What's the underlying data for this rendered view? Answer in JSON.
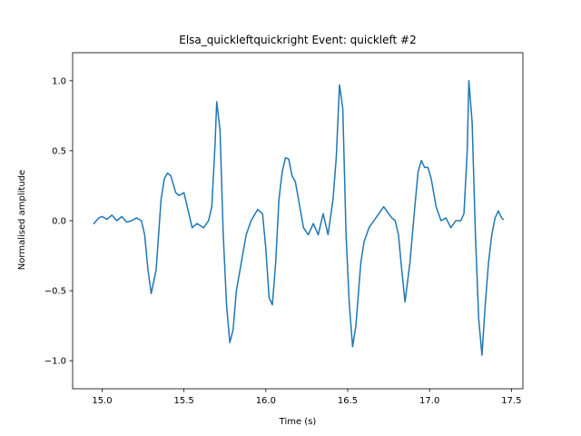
{
  "chart_data": {
    "type": "line",
    "title": "Elsa_quickleftquickright Event: quickleft #2",
    "xlabel": "Time (s)",
    "ylabel": "Normalised amplitude",
    "xlim": [
      14.82,
      17.57
    ],
    "ylim": [
      -1.2,
      1.2
    ],
    "xticks": [
      15.0,
      15.5,
      16.0,
      16.5,
      17.0,
      17.5
    ],
    "xtick_labels": [
      "15.0",
      "15.5",
      "16.0",
      "16.5",
      "17.0",
      "17.5"
    ],
    "yticks": [
      -1.0,
      -0.5,
      0.0,
      0.5,
      1.0
    ],
    "ytick_labels": [
      "−1.0",
      "−0.5",
      "0.0",
      "0.5",
      "1.0"
    ],
    "grid": false,
    "series": [
      {
        "color": "#1f77b4",
        "x": [
          14.95,
          14.98,
          15.0,
          15.03,
          15.06,
          15.09,
          15.12,
          15.15,
          15.18,
          15.21,
          15.24,
          15.26,
          15.28,
          15.3,
          15.33,
          15.36,
          15.38,
          15.4,
          15.42,
          15.45,
          15.47,
          15.5,
          15.53,
          15.55,
          15.58,
          15.62,
          15.65,
          15.67,
          15.69,
          15.7,
          15.72,
          15.74,
          15.76,
          15.78,
          15.8,
          15.82,
          15.85,
          15.88,
          15.91,
          15.95,
          15.98,
          16.0,
          16.02,
          16.04,
          16.06,
          16.08,
          16.1,
          16.12,
          16.14,
          16.16,
          16.18,
          16.2,
          16.23,
          16.26,
          16.29,
          16.32,
          16.35,
          16.38,
          16.41,
          16.43,
          16.45,
          16.47,
          16.49,
          16.51,
          16.53,
          16.55,
          16.58,
          16.6,
          16.63,
          16.66,
          16.69,
          16.72,
          16.75,
          16.77,
          16.79,
          16.81,
          16.83,
          16.85,
          16.88,
          16.91,
          16.93,
          16.95,
          16.97,
          16.99,
          17.01,
          17.04,
          17.07,
          17.1,
          17.13,
          17.16,
          17.19,
          17.21,
          17.23,
          17.24,
          17.26,
          17.28,
          17.3,
          17.32,
          17.34,
          17.36,
          17.38,
          17.4,
          17.42,
          17.44,
          17.45
        ],
        "y": [
          -0.02,
          0.02,
          0.03,
          0.01,
          0.04,
          0.0,
          0.03,
          -0.01,
          0.0,
          0.02,
          0.0,
          -0.1,
          -0.35,
          -0.52,
          -0.35,
          0.15,
          0.3,
          0.34,
          0.32,
          0.2,
          0.18,
          0.2,
          0.05,
          -0.05,
          -0.02,
          -0.05,
          0.0,
          0.1,
          0.55,
          0.85,
          0.65,
          -0.1,
          -0.6,
          -0.87,
          -0.78,
          -0.5,
          -0.3,
          -0.1,
          0.0,
          0.08,
          0.05,
          -0.2,
          -0.55,
          -0.6,
          -0.3,
          0.15,
          0.35,
          0.45,
          0.44,
          0.32,
          0.28,
          0.15,
          -0.05,
          -0.1,
          -0.02,
          -0.1,
          0.05,
          -0.1,
          0.15,
          0.45,
          0.97,
          0.8,
          -0.1,
          -0.6,
          -0.9,
          -0.75,
          -0.3,
          -0.15,
          -0.05,
          0.0,
          0.05,
          0.1,
          0.05,
          0.02,
          0.0,
          -0.1,
          -0.35,
          -0.58,
          -0.3,
          0.1,
          0.35,
          0.43,
          0.38,
          0.38,
          0.3,
          0.1,
          0.0,
          0.02,
          -0.05,
          0.0,
          0.0,
          0.05,
          0.5,
          1.0,
          0.7,
          -0.1,
          -0.7,
          -0.96,
          -0.6,
          -0.3,
          -0.1,
          0.02,
          0.07,
          0.02,
          0.01
        ]
      }
    ]
  }
}
